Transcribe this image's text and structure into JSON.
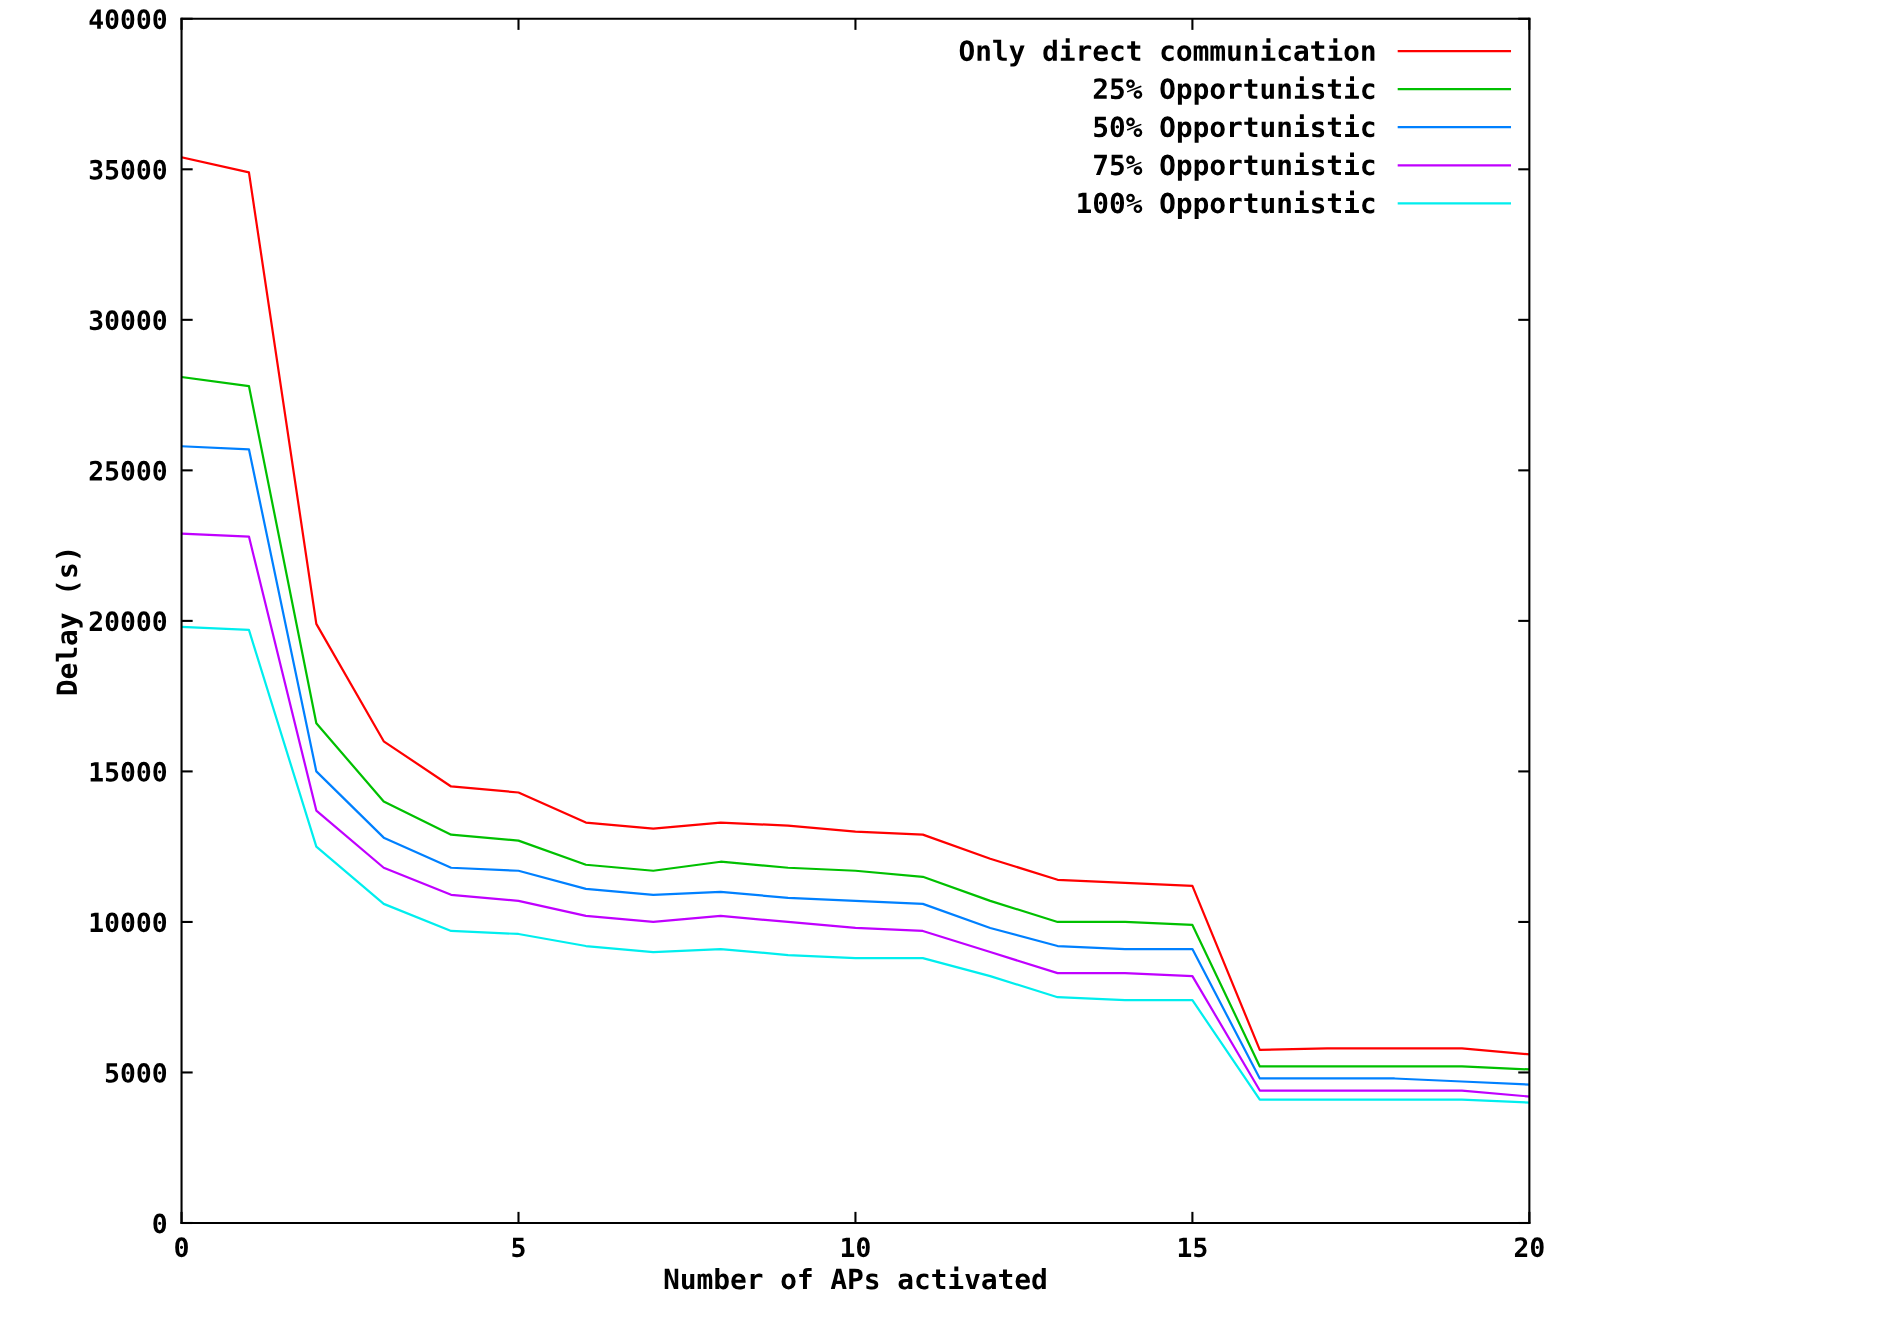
{
  "chart_data": {
    "type": "line",
    "xlabel": "Number of APs activated",
    "ylabel": "Delay (s)",
    "x": [
      0,
      1,
      2,
      3,
      4,
      5,
      6,
      7,
      8,
      9,
      10,
      11,
      12,
      13,
      14,
      15,
      16,
      17,
      18,
      19,
      20
    ],
    "series": [
      {
        "name": "Only direct communication",
        "color": "#ff0000",
        "values": [
          35400,
          34900,
          19900,
          16000,
          14500,
          14300,
          13300,
          13100,
          13300,
          13200,
          13000,
          12900,
          12100,
          11400,
          11300,
          11200,
          5750,
          5800,
          5800,
          5800,
          5600
        ]
      },
      {
        "name": "25% Opportunistic",
        "color": "#00c000",
        "values": [
          28100,
          27800,
          16600,
          14000,
          12900,
          12700,
          11900,
          11700,
          12000,
          11800,
          11700,
          11500,
          10700,
          10000,
          10000,
          9900,
          5200,
          5200,
          5200,
          5200,
          5100
        ]
      },
      {
        "name": "50% Opportunistic",
        "color": "#0080ff",
        "values": [
          25800,
          25700,
          15000,
          12800,
          11800,
          11700,
          11100,
          10900,
          11000,
          10800,
          10700,
          10600,
          9800,
          9200,
          9100,
          9100,
          4800,
          4800,
          4800,
          4700,
          4600
        ]
      },
      {
        "name": "75% Opportunistic",
        "color": "#c000ff",
        "values": [
          22900,
          22800,
          13700,
          11800,
          10900,
          10700,
          10200,
          10000,
          10200,
          10000,
          9800,
          9700,
          9000,
          8300,
          8300,
          8200,
          4400,
          4400,
          4400,
          4400,
          4200
        ]
      },
      {
        "name": "100% Opportunistic",
        "color": "#00eeee",
        "values": [
          19800,
          19700,
          12500,
          10600,
          9700,
          9600,
          9200,
          9000,
          9100,
          8900,
          8800,
          8800,
          8200,
          7500,
          7400,
          7400,
          4100,
          4100,
          4100,
          4100,
          4000
        ]
      }
    ],
    "xlim": [
      0,
      20
    ],
    "ylim": [
      0,
      40000
    ],
    "xticks": [
      0,
      5,
      10,
      15,
      20
    ],
    "yticks": [
      0,
      5000,
      10000,
      15000,
      20000,
      25000,
      30000,
      35000,
      40000
    ],
    "grid": false,
    "legend": "top right",
    "marker": "none",
    "line_style": "solid"
  }
}
